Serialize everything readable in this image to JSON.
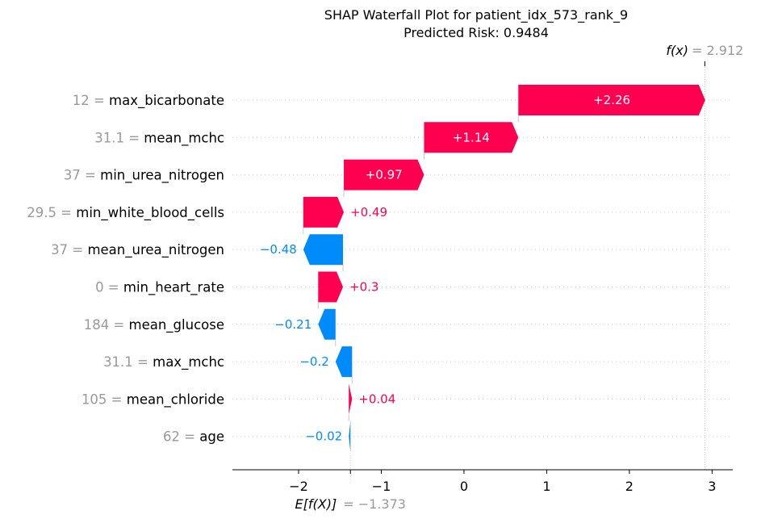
{
  "chart_data": {
    "type": "waterfall",
    "title": "SHAP Waterfall Plot for patient_idx_573_rank_9",
    "subtitle": "Predicted Risk: 0.9484",
    "base_value": -1.373,
    "base_label": "E[f(X)]",
    "base_value_text": "= −1.373",
    "output_value": 2.912,
    "output_label": "f(x)",
    "output_value_text": "= 2.912",
    "xlim": [
      -2.8,
      3.25
    ],
    "xticks": [
      -2,
      -1,
      0,
      1,
      2,
      3
    ],
    "xtick_labels": [
      "−2",
      "−1",
      "0",
      "1",
      "2",
      "3"
    ],
    "features": [
      {
        "value_text": "12",
        "name": "max_bicarbonate",
        "shap": 2.26,
        "label": "+2.26"
      },
      {
        "value_text": "31.1",
        "name": "mean_mchc",
        "shap": 1.14,
        "label": "+1.14"
      },
      {
        "value_text": "37",
        "name": "min_urea_nitrogen",
        "shap": 0.97,
        "label": "+0.97"
      },
      {
        "value_text": "29.5",
        "name": "min_white_blood_cells",
        "shap": 0.49,
        "label": "+0.49"
      },
      {
        "value_text": "37",
        "name": "mean_urea_nitrogen",
        "shap": -0.48,
        "label": "−0.48"
      },
      {
        "value_text": "0",
        "name": "min_heart_rate",
        "shap": 0.3,
        "label": "+0.3"
      },
      {
        "value_text": "184",
        "name": "mean_glucose",
        "shap": -0.21,
        "label": "−0.21"
      },
      {
        "value_text": "31.1",
        "name": "max_mchc",
        "shap": -0.2,
        "label": "−0.2"
      },
      {
        "value_text": "105",
        "name": "mean_chloride",
        "shap": 0.04,
        "label": "+0.04"
      },
      {
        "value_text": "62",
        "name": "age",
        "shap": -0.02,
        "label": "−0.02"
      }
    ],
    "colors": {
      "positive": "#ff0051",
      "negative": "#008bfb",
      "value_text": "#999999",
      "grid": "#cccccc"
    }
  }
}
